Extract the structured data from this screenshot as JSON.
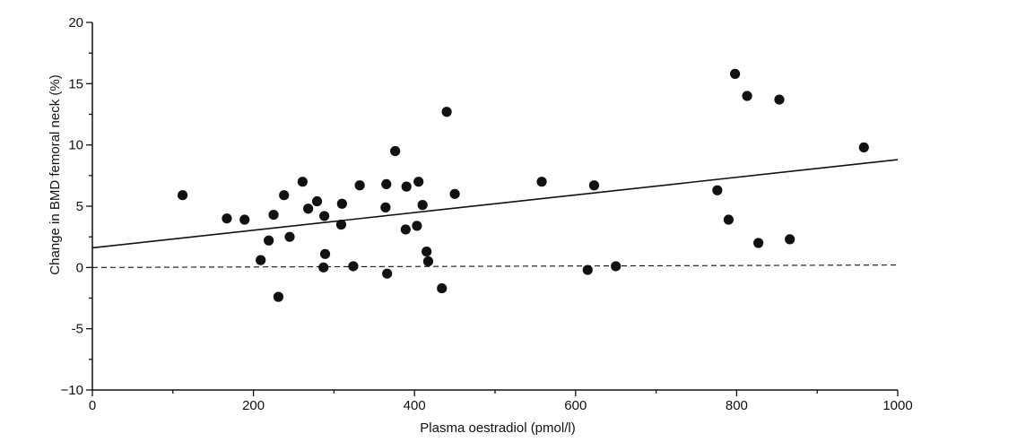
{
  "chart_data": {
    "type": "scatter",
    "title": "",
    "xlabel": "Plasma oestradiol (pmol/l)",
    "ylabel": "Change in BMD femoral neck (%)",
    "xlim": [
      0,
      1000
    ],
    "ylim": [
      -10,
      20
    ],
    "x_ticks": [
      0,
      200,
      400,
      600,
      800,
      1000
    ],
    "x_tick_labels": [
      "0",
      "200",
      "400",
      "600",
      "800",
      "1000"
    ],
    "y_ticks": [
      -10,
      -5,
      0,
      5,
      10,
      15,
      20
    ],
    "y_tick_labels": [
      "−10",
      "-5",
      "0",
      "5",
      "10",
      "15",
      "20"
    ],
    "grid": false,
    "regression_line": {
      "style": "solid",
      "x": [
        0,
        1000
      ],
      "y": [
        1.6,
        8.8
      ]
    },
    "reference_line": {
      "style": "dashed",
      "x": [
        0,
        1000
      ],
      "y": [
        0,
        0.2
      ]
    },
    "series": [
      {
        "points": [
          [
            112,
            5.9
          ],
          [
            167,
            4.0
          ],
          [
            189,
            3.9
          ],
          [
            209,
            0.6
          ],
          [
            219,
            2.2
          ],
          [
            225,
            4.3
          ],
          [
            231,
            -2.4
          ],
          [
            238,
            5.9
          ],
          [
            245,
            2.5
          ],
          [
            261,
            7.0
          ],
          [
            268,
            4.8
          ],
          [
            279,
            5.4
          ],
          [
            287,
            0.0
          ],
          [
            288,
            4.2
          ],
          [
            289,
            1.1
          ],
          [
            309,
            3.5
          ],
          [
            310,
            5.2
          ],
          [
            324,
            0.1
          ],
          [
            332,
            6.7
          ],
          [
            364,
            4.9
          ],
          [
            365,
            6.8
          ],
          [
            366,
            -0.5
          ],
          [
            376,
            9.5
          ],
          [
            389,
            3.1
          ],
          [
            390,
            6.6
          ],
          [
            403,
            3.4
          ],
          [
            405,
            7.0
          ],
          [
            410,
            5.1
          ],
          [
            415,
            1.3
          ],
          [
            417,
            0.5
          ],
          [
            434,
            -1.7
          ],
          [
            440,
            12.7
          ],
          [
            450,
            6.0
          ],
          [
            558,
            7.0
          ],
          [
            615,
            -0.2
          ],
          [
            623,
            6.7
          ],
          [
            650,
            0.1
          ],
          [
            776,
            6.3
          ],
          [
            790,
            3.9
          ],
          [
            798,
            15.8
          ],
          [
            813,
            14.0
          ],
          [
            827,
            2.0
          ],
          [
            853,
            13.7
          ],
          [
            866,
            2.3
          ],
          [
            958,
            9.8
          ]
        ]
      }
    ]
  }
}
